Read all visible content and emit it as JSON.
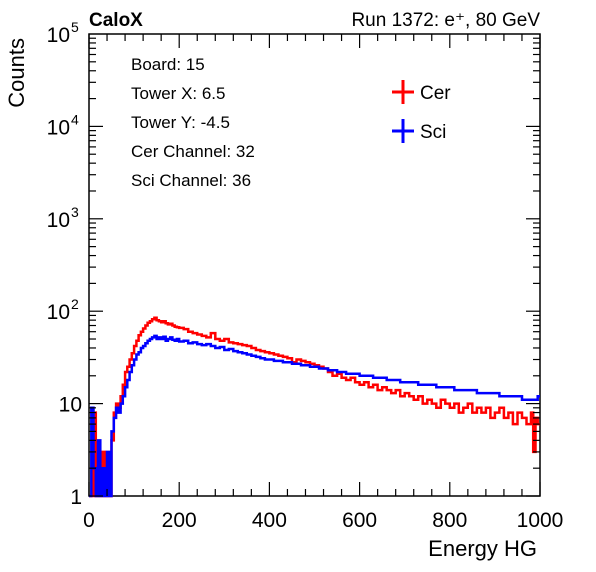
{
  "header": {
    "experiment": "CaloX",
    "run_info": "Run 1372: e⁺, 80 GeV"
  },
  "info_box": [
    "Board: 15",
    "Tower X: 6.5",
    "Tower Y: -4.5",
    "Cer Channel: 32",
    "Sci Channel: 36"
  ],
  "chart_data": {
    "type": "line",
    "drawstyle": "histogram",
    "xlabel": "Energy HG",
    "ylabel": "Counts",
    "xlim": [
      0,
      1000
    ],
    "ylim": [
      1,
      100000
    ],
    "yscale": "log",
    "grid": false,
    "legend_position": "top-right",
    "x_ticks": [
      0,
      200,
      400,
      600,
      800,
      1000
    ],
    "x_tick_labels": [
      "0",
      "200",
      "400",
      "600",
      "800",
      "1000"
    ],
    "y_ticks": [
      1,
      10,
      100,
      1000,
      10000,
      100000
    ],
    "y_tick_labels": [
      {
        "base": "1",
        "exp": ""
      },
      {
        "base": "10",
        "exp": ""
      },
      {
        "base": "10",
        "exp": "2"
      },
      {
        "base": "10",
        "exp": "3"
      },
      {
        "base": "10",
        "exp": "4"
      },
      {
        "base": "10",
        "exp": "5"
      }
    ],
    "series": [
      {
        "name": "Cer",
        "color": "#ff0000",
        "points": [
          [
            0,
            1
          ],
          [
            5,
            1
          ],
          [
            10,
            8
          ],
          [
            15,
            1
          ],
          [
            20,
            2
          ],
          [
            25,
            1
          ],
          [
            30,
            3
          ],
          [
            35,
            1
          ],
          [
            40,
            2
          ],
          [
            45,
            1
          ],
          [
            50,
            4
          ],
          [
            55,
            8
          ],
          [
            60,
            10
          ],
          [
            65,
            9
          ],
          [
            70,
            12
          ],
          [
            75,
            16
          ],
          [
            80,
            22
          ],
          [
            85,
            25
          ],
          [
            90,
            30
          ],
          [
            95,
            35
          ],
          [
            100,
            42
          ],
          [
            105,
            48
          ],
          [
            110,
            55
          ],
          [
            115,
            60
          ],
          [
            120,
            65
          ],
          [
            125,
            70
          ],
          [
            130,
            75
          ],
          [
            135,
            78
          ],
          [
            140,
            82
          ],
          [
            145,
            85
          ],
          [
            150,
            80
          ],
          [
            155,
            78
          ],
          [
            160,
            76
          ],
          [
            165,
            78
          ],
          [
            170,
            74
          ],
          [
            175,
            72
          ],
          [
            180,
            73
          ],
          [
            185,
            70
          ],
          [
            190,
            68
          ],
          [
            195,
            67
          ],
          [
            200,
            66
          ],
          [
            210,
            64
          ],
          [
            220,
            60
          ],
          [
            230,
            58
          ],
          [
            240,
            56
          ],
          [
            250,
            54
          ],
          [
            260,
            52
          ],
          [
            270,
            58
          ],
          [
            280,
            50
          ],
          [
            290,
            48
          ],
          [
            300,
            50
          ],
          [
            310,
            46
          ],
          [
            320,
            45
          ],
          [
            330,
            44
          ],
          [
            340,
            43
          ],
          [
            350,
            42
          ],
          [
            360,
            40
          ],
          [
            370,
            38
          ],
          [
            380,
            37
          ],
          [
            390,
            36
          ],
          [
            400,
            35
          ],
          [
            410,
            34
          ],
          [
            420,
            33
          ],
          [
            430,
            32
          ],
          [
            440,
            31
          ],
          [
            450,
            28
          ],
          [
            460,
            30
          ],
          [
            470,
            29
          ],
          [
            480,
            28
          ],
          [
            490,
            27
          ],
          [
            500,
            26
          ],
          [
            510,
            25
          ],
          [
            520,
            24
          ],
          [
            530,
            22
          ],
          [
            540,
            20
          ],
          [
            550,
            21
          ],
          [
            560,
            19
          ],
          [
            570,
            18
          ],
          [
            580,
            19
          ],
          [
            590,
            17
          ],
          [
            600,
            16
          ],
          [
            610,
            17
          ],
          [
            620,
            15
          ],
          [
            630,
            16
          ],
          [
            640,
            14
          ],
          [
            650,
            15
          ],
          [
            660,
            14
          ],
          [
            670,
            13
          ],
          [
            680,
            14
          ],
          [
            690,
            12
          ],
          [
            700,
            13
          ],
          [
            710,
            12
          ],
          [
            720,
            11
          ],
          [
            730,
            12
          ],
          [
            740,
            10
          ],
          [
            750,
            11
          ],
          [
            760,
            10
          ],
          [
            770,
            9
          ],
          [
            780,
            11
          ],
          [
            790,
            10
          ],
          [
            800,
            9
          ],
          [
            810,
            10
          ],
          [
            820,
            8
          ],
          [
            830,
            9
          ],
          [
            840,
            10
          ],
          [
            850,
            8
          ],
          [
            860,
            9
          ],
          [
            870,
            8
          ],
          [
            880,
            9
          ],
          [
            890,
            7
          ],
          [
            900,
            8
          ],
          [
            910,
            9
          ],
          [
            920,
            7
          ],
          [
            930,
            8
          ],
          [
            940,
            6
          ],
          [
            950,
            8
          ],
          [
            960,
            7
          ],
          [
            970,
            6
          ],
          [
            980,
            8
          ],
          [
            985,
            3
          ],
          [
            990,
            7
          ],
          [
            995,
            6
          ]
        ]
      },
      {
        "name": "Sci",
        "color": "#0000ff",
        "points": [
          [
            0,
            1
          ],
          [
            5,
            9
          ],
          [
            10,
            2
          ],
          [
            15,
            1
          ],
          [
            20,
            4
          ],
          [
            25,
            1
          ],
          [
            30,
            2
          ],
          [
            35,
            1
          ],
          [
            40,
            3
          ],
          [
            45,
            1
          ],
          [
            50,
            5
          ],
          [
            55,
            7
          ],
          [
            60,
            9
          ],
          [
            65,
            8
          ],
          [
            70,
            10
          ],
          [
            75,
            12
          ],
          [
            80,
            15
          ],
          [
            85,
            18
          ],
          [
            90,
            22
          ],
          [
            95,
            26
          ],
          [
            100,
            30
          ],
          [
            105,
            34
          ],
          [
            110,
            36
          ],
          [
            115,
            40
          ],
          [
            120,
            42
          ],
          [
            125,
            45
          ],
          [
            130,
            48
          ],
          [
            135,
            50
          ],
          [
            140,
            52
          ],
          [
            145,
            54
          ],
          [
            150,
            50
          ],
          [
            155,
            52
          ],
          [
            160,
            50
          ],
          [
            165,
            53
          ],
          [
            170,
            48
          ],
          [
            175,
            50
          ],
          [
            180,
            52
          ],
          [
            185,
            49
          ],
          [
            190,
            48
          ],
          [
            195,
            50
          ],
          [
            200,
            47
          ],
          [
            210,
            48
          ],
          [
            220,
            45
          ],
          [
            230,
            46
          ],
          [
            240,
            44
          ],
          [
            250,
            43
          ],
          [
            260,
            44
          ],
          [
            270,
            42
          ],
          [
            280,
            40
          ],
          [
            290,
            41
          ],
          [
            300,
            38
          ],
          [
            310,
            39
          ],
          [
            320,
            37
          ],
          [
            330,
            36
          ],
          [
            340,
            35
          ],
          [
            350,
            34
          ],
          [
            360,
            33
          ],
          [
            370,
            32
          ],
          [
            380,
            31
          ],
          [
            390,
            30
          ],
          [
            400,
            30
          ],
          [
            410,
            29
          ],
          [
            420,
            29
          ],
          [
            430,
            28
          ],
          [
            440,
            28
          ],
          [
            450,
            27
          ],
          [
            460,
            27
          ],
          [
            470,
            26
          ],
          [
            480,
            26
          ],
          [
            490,
            25
          ],
          [
            500,
            25
          ],
          [
            510,
            24
          ],
          [
            520,
            24
          ],
          [
            530,
            23
          ],
          [
            540,
            23
          ],
          [
            550,
            22
          ],
          [
            560,
            22
          ],
          [
            570,
            21
          ],
          [
            580,
            21
          ],
          [
            590,
            21
          ],
          [
            600,
            20
          ],
          [
            610,
            20
          ],
          [
            620,
            20
          ],
          [
            630,
            19
          ],
          [
            640,
            19
          ],
          [
            650,
            19
          ],
          [
            660,
            18
          ],
          [
            670,
            18
          ],
          [
            680,
            18
          ],
          [
            690,
            17
          ],
          [
            700,
            17
          ],
          [
            710,
            17
          ],
          [
            720,
            17
          ],
          [
            730,
            16
          ],
          [
            740,
            16
          ],
          [
            750,
            16
          ],
          [
            760,
            16
          ],
          [
            770,
            15
          ],
          [
            780,
            15
          ],
          [
            790,
            15
          ],
          [
            800,
            15
          ],
          [
            810,
            14
          ],
          [
            820,
            14
          ],
          [
            830,
            14
          ],
          [
            840,
            14
          ],
          [
            850,
            14
          ],
          [
            860,
            13
          ],
          [
            870,
            13
          ],
          [
            880,
            13
          ],
          [
            890,
            13
          ],
          [
            900,
            13
          ],
          [
            910,
            12
          ],
          [
            920,
            12
          ],
          [
            930,
            12
          ],
          [
            940,
            12
          ],
          [
            950,
            12
          ],
          [
            960,
            11
          ],
          [
            970,
            11
          ],
          [
            980,
            11
          ],
          [
            990,
            11
          ],
          [
            995,
            12
          ]
        ]
      }
    ]
  }
}
